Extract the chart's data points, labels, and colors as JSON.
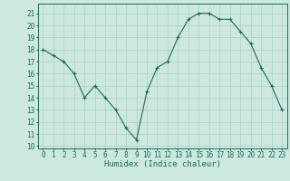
{
  "x": [
    0,
    1,
    2,
    3,
    4,
    5,
    6,
    7,
    8,
    9,
    10,
    11,
    12,
    13,
    14,
    15,
    16,
    17,
    18,
    19,
    20,
    21,
    22,
    23
  ],
  "y": [
    18.0,
    17.5,
    17.0,
    16.0,
    14.0,
    15.0,
    14.0,
    13.0,
    11.5,
    10.5,
    14.5,
    16.5,
    17.0,
    19.0,
    20.5,
    21.0,
    21.0,
    20.5,
    20.5,
    19.5,
    18.5,
    16.5,
    15.0,
    13.0
  ],
  "xlim": [
    -0.5,
    23.5
  ],
  "ylim": [
    9.8,
    21.8
  ],
  "yticks": [
    10,
    11,
    12,
    13,
    14,
    15,
    16,
    17,
    18,
    19,
    20,
    21
  ],
  "xticks": [
    0,
    1,
    2,
    3,
    4,
    5,
    6,
    7,
    8,
    9,
    10,
    11,
    12,
    13,
    14,
    15,
    16,
    17,
    18,
    19,
    20,
    21,
    22,
    23
  ],
  "xlabel": "Humidex (Indice chaleur)",
  "line_color": "#1a6b5a",
  "marker": "+",
  "bg_color": "#cce8e0",
  "grid_color": "#aacfc8",
  "tick_label_size": 5.5,
  "xlabel_size": 6.5
}
